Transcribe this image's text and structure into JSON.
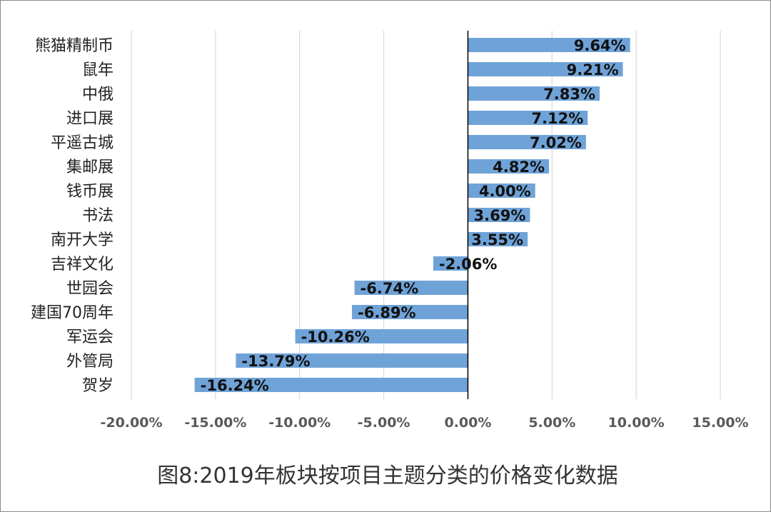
{
  "chart_data": {
    "type": "bar",
    "orientation": "horizontal",
    "title": "图8:2019年板块按项目主题分类的价格变化数据",
    "categories": [
      "熊猫精制币",
      "鼠年",
      "中俄",
      "进口展",
      "平遥古城",
      "集邮展",
      "钱币展",
      "书法",
      "南开大学",
      "吉祥文化",
      "世园会",
      "建国70周年",
      "军运会",
      "外管局",
      "贺岁"
    ],
    "values": [
      9.64,
      9.21,
      7.83,
      7.12,
      7.02,
      4.82,
      4.0,
      3.69,
      3.55,
      -2.06,
      -6.74,
      -6.89,
      -10.26,
      -13.79,
      -16.24
    ],
    "data_labels": [
      "9.64%",
      "9.21%",
      "7.83%",
      "7.12%",
      "7.02%",
      "4.82%",
      "4.00%",
      "3.69%",
      "3.55%",
      "-2.06%",
      "-6.74%",
      "-6.89%",
      "-10.26%",
      "-13.79%",
      "-16.24%"
    ],
    "x_ticks": [
      -20,
      -15,
      -10,
      -5,
      0,
      5,
      10,
      15
    ],
    "x_tick_labels": [
      "-20.00%",
      "-15.00%",
      "-10.00%",
      "-5.00%",
      "0.00%",
      "5.00%",
      "10.00%",
      "15.00%"
    ],
    "xlim": [
      -20,
      15
    ],
    "xlabel": "",
    "ylabel": "",
    "grid": true,
    "legend": "none",
    "colors": {
      "bar": "#6fa3d8",
      "grid": "#d9d9d9",
      "axis": "#000000"
    }
  }
}
